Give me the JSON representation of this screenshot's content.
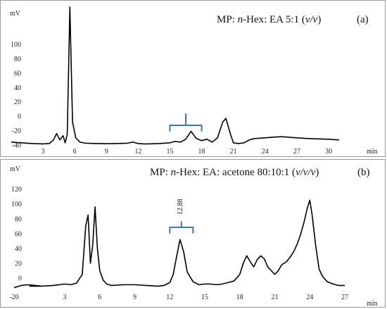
{
  "chart_data": [
    {
      "type": "line",
      "panel_label": "(a)",
      "title_prefix": "MP: ",
      "title_italic_a": "n",
      "title_middle": "-Hex: EA 5:1 (",
      "title_italic_b": "v/v",
      "title_suffix": ")",
      "ylabel": "mV",
      "xlabel": "min",
      "xlim": [
        0,
        32.5
      ],
      "ylim": [
        -42,
        155
      ],
      "yticks": [
        -40,
        -20,
        0,
        20,
        40,
        60,
        80,
        100
      ],
      "ytick_labels": [
        "-40",
        "-20",
        "0",
        "20",
        "40",
        "60",
        "80",
        "100"
      ],
      "xticks": [
        3,
        6,
        9,
        12,
        15,
        18,
        21,
        24,
        27,
        30
      ],
      "xtick_labels": [
        "3",
        "6",
        "9",
        "12",
        "15",
        "18",
        "21",
        "24",
        "27",
        "30"
      ],
      "bracket_range": [
        15,
        18
      ],
      "series": [
        {
          "x": [
            0,
            1,
            2,
            3,
            3.6,
            4,
            4.3,
            4.6,
            4.9,
            5.1,
            5.3,
            5.55,
            5.8,
            6.1,
            6.5,
            7,
            8,
            9,
            10,
            11,
            11.5,
            12,
            12.5,
            13,
            14,
            15,
            15.5,
            16,
            16.5,
            17,
            17.5,
            18,
            18.5,
            19,
            19.5,
            20,
            20.3,
            20.7,
            21,
            21.5,
            22,
            22.5,
            23,
            23.5,
            24,
            24.5,
            25,
            25.5,
            26,
            27,
            28,
            29,
            30,
            31
          ],
          "y": [
            -36,
            -37,
            -38,
            -38.5,
            -38,
            -33,
            -24,
            -33,
            -27,
            -37,
            -25,
            152,
            -8,
            -30,
            -36,
            -37.5,
            -38,
            -38.3,
            -38,
            -37.5,
            -36,
            -38,
            -38.5,
            -38.5,
            -38,
            -37,
            -35,
            -36,
            -32,
            -21,
            -31,
            -34,
            -32,
            -36,
            -30,
            -8,
            -3,
            -24,
            -37,
            -38,
            -37,
            -33,
            -31,
            -30.5,
            -30,
            -29.5,
            -29,
            -28.5,
            -29,
            -30,
            -31,
            -31.5,
            -32,
            -33
          ]
        }
      ]
    },
    {
      "type": "line",
      "panel_label": "(b)",
      "title_prefix": "MP: ",
      "title_italic_a": "n",
      "title_middle": "-Hex: EA: acetone 80:10:1 (",
      "title_italic_b": "v/v/v",
      "title_suffix": ")",
      "ylabel": "mV",
      "xlabel": "min",
      "xlim": [
        -20,
        28
      ],
      "ylim": [
        -18,
        132
      ],
      "yticks": [
        0,
        20,
        40,
        60,
        80,
        100,
        120
      ],
      "ytick_labels": [
        "0",
        "20",
        "40",
        "60",
        "80",
        "100",
        "120"
      ],
      "xticks": [
        -20,
        3,
        6,
        9,
        12,
        15,
        18,
        21,
        24,
        27
      ],
      "xtick_labels": [
        "-20",
        "3",
        "6",
        "9",
        "12",
        "15",
        "18",
        "21",
        "24",
        "27"
      ],
      "bracket_range": [
        12,
        14
      ],
      "peak_annotation": {
        "label": "12.88",
        "x": 12.88
      },
      "series": [
        {
          "x": [
            -20,
            -18,
            -16,
            -14,
            -12,
            0,
            1,
            2,
            3,
            3.5,
            4,
            4.5,
            4.8,
            5,
            5.2,
            5.4,
            5.6,
            5.8,
            6,
            6.3,
            6.6,
            7,
            8,
            9,
            10,
            11,
            11.5,
            12,
            12.3,
            12.6,
            12.88,
            13.2,
            13.5,
            14,
            14.5,
            15,
            15.5,
            16,
            16.5,
            17,
            17.5,
            18,
            18.3,
            18.6,
            18.9,
            19.2,
            19.5,
            19.8,
            20.1,
            20.4,
            20.7,
            21,
            21.3,
            21.6,
            22,
            22.3,
            22.6,
            22.9,
            23.2,
            23.5,
            23.8,
            24,
            24.2,
            24.5,
            24.8,
            25.1,
            25.5,
            26,
            26.5,
            27
          ],
          "y": [
            -13,
            -10,
            -9,
            -10,
            -11,
            -11,
            -11,
            -10,
            -8,
            -9,
            -7,
            5,
            70,
            85,
            20,
            45,
            96,
            40,
            10,
            -3,
            -8,
            -10,
            -9,
            -9,
            -10,
            -11,
            -10,
            -6,
            5,
            30,
            52,
            35,
            8,
            -5,
            -9,
            -8,
            -8,
            -9,
            -8,
            -6,
            -4,
            5,
            20,
            30,
            22,
            15,
            25,
            30,
            26,
            15,
            10,
            5,
            10,
            18,
            22,
            28,
            35,
            45,
            58,
            75,
            95,
            105,
            85,
            45,
            12,
            2,
            -5,
            -8,
            -10,
            -10
          ]
        }
      ]
    }
  ]
}
